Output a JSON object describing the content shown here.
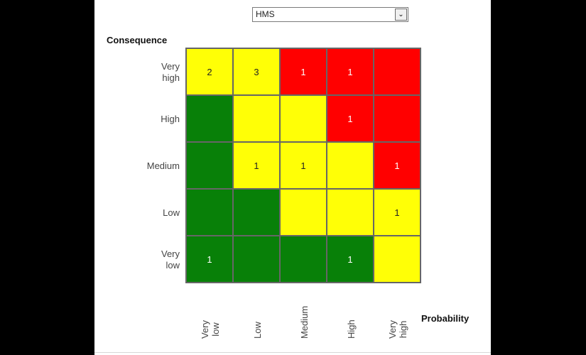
{
  "filter": {
    "selected": "HMS",
    "arrow": "⌄"
  },
  "matrix": {
    "y_title": "Consequence",
    "x_title": "Probability",
    "rows": [
      "Very\nhigh",
      "High",
      "Medium",
      "Low",
      "Very\nlow"
    ],
    "cols": [
      "Very\nlow",
      "Low",
      "Medium",
      "High",
      "Very\nhigh"
    ],
    "colors": {
      "green": "#088008",
      "yellow": "#ffff06",
      "red": "#ff0000"
    },
    "cells": [
      [
        {
          "level": "yellow",
          "count": "2"
        },
        {
          "level": "yellow",
          "count": "3"
        },
        {
          "level": "red",
          "count": "1"
        },
        {
          "level": "red",
          "count": "1"
        },
        {
          "level": "red",
          "count": ""
        }
      ],
      [
        {
          "level": "green",
          "count": ""
        },
        {
          "level": "yellow",
          "count": ""
        },
        {
          "level": "yellow",
          "count": ""
        },
        {
          "level": "red",
          "count": "1"
        },
        {
          "level": "red",
          "count": ""
        }
      ],
      [
        {
          "level": "green",
          "count": ""
        },
        {
          "level": "yellow",
          "count": "1"
        },
        {
          "level": "yellow",
          "count": "1"
        },
        {
          "level": "yellow",
          "count": ""
        },
        {
          "level": "red",
          "count": "1"
        }
      ],
      [
        {
          "level": "green",
          "count": ""
        },
        {
          "level": "green",
          "count": ""
        },
        {
          "level": "yellow",
          "count": ""
        },
        {
          "level": "yellow",
          "count": ""
        },
        {
          "level": "yellow",
          "count": "1"
        }
      ],
      [
        {
          "level": "green",
          "count": "1"
        },
        {
          "level": "green",
          "count": ""
        },
        {
          "level": "green",
          "count": ""
        },
        {
          "level": "green",
          "count": "1"
        },
        {
          "level": "yellow",
          "count": ""
        }
      ]
    ]
  }
}
